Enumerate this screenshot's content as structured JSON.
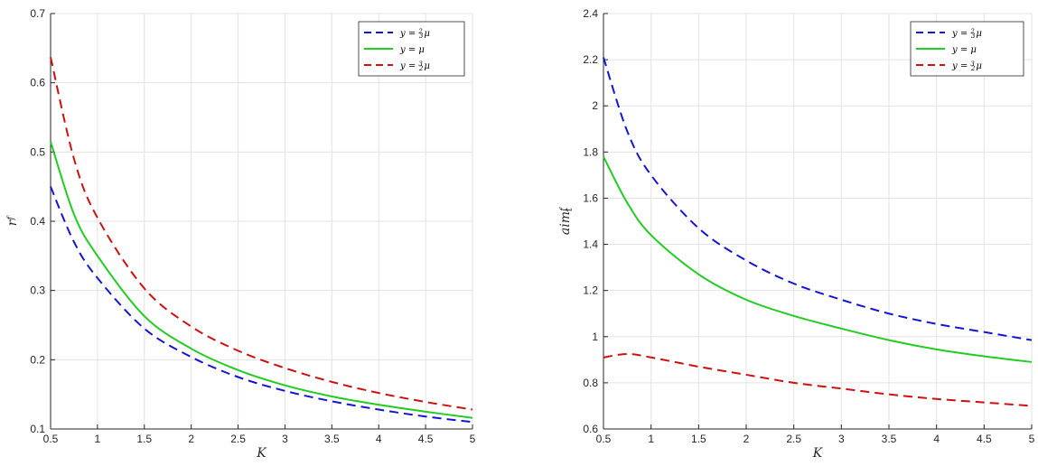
{
  "chart_data": [
    {
      "type": "line",
      "xlabel": "K",
      "ylabel": "r",
      "ylabel_sup": "f",
      "ylabel_sub": "",
      "xlim": [
        0.5,
        5
      ],
      "ylim": [
        0.1,
        0.7
      ],
      "xticks": [
        "0.5",
        "1",
        "1.5",
        "2",
        "2.5",
        "3",
        "3.5",
        "4",
        "4.5",
        "5"
      ],
      "yticks": [
        "0.1",
        "0.2",
        "0.3",
        "0.4",
        "0.5",
        "0.6",
        "0.7"
      ],
      "grid": true,
      "legend_position": "top-right",
      "x": [
        0.5,
        0.75,
        1.0,
        1.5,
        2.0,
        2.5,
        3.0,
        3.5,
        4.0,
        4.5,
        5.0
      ],
      "series": [
        {
          "name": "y = 2/3 μ",
          "legend": {
            "pre": "y = ",
            "num": "2",
            "den": "3",
            "post": "μ"
          },
          "color": "#1515d6",
          "dash": true,
          "values": [
            0.45,
            0.37,
            0.318,
            0.245,
            0.204,
            0.175,
            0.155,
            0.14,
            0.128,
            0.118,
            0.11
          ]
        },
        {
          "name": "y = μ",
          "legend": {
            "pre": "y = μ",
            "num": "",
            "den": "",
            "post": ""
          },
          "color": "#22cc22",
          "dash": false,
          "values": [
            0.515,
            0.41,
            0.35,
            0.263,
            0.216,
            0.185,
            0.163,
            0.147,
            0.135,
            0.125,
            0.116
          ]
        },
        {
          "name": "y = 3/2 μ",
          "legend": {
            "pre": "y = ",
            "num": "3",
            "den": "2",
            "post": "μ"
          },
          "color": "#cc1111",
          "dash": true,
          "values": [
            0.637,
            0.49,
            0.405,
            0.303,
            0.248,
            0.213,
            0.188,
            0.168,
            0.152,
            0.139,
            0.128
          ]
        }
      ]
    },
    {
      "type": "line",
      "xlabel": "K",
      "ylabel": "aim",
      "ylabel_sup": "f",
      "ylabel_sub": "t",
      "xlim": [
        0.5,
        5
      ],
      "ylim": [
        0.6,
        2.4
      ],
      "xticks": [
        "0.5",
        "1",
        "1.5",
        "2",
        "2.5",
        "3",
        "3.5",
        "4",
        "4.5",
        "5"
      ],
      "yticks": [
        "0.6",
        "0.8",
        "1",
        "1.2",
        "1.4",
        "1.6",
        "1.8",
        "2",
        "2.2",
        "2.4"
      ],
      "grid": true,
      "legend_position": "top-right",
      "x": [
        0.5,
        0.75,
        1.0,
        1.5,
        2.0,
        2.5,
        3.0,
        3.5,
        4.0,
        4.5,
        5.0
      ],
      "series": [
        {
          "name": "y = 2/3 μ",
          "legend": {
            "pre": "y = ",
            "num": "2",
            "den": "3",
            "post": "μ"
          },
          "color": "#1515d6",
          "dash": true,
          "values": [
            2.21,
            1.89,
            1.7,
            1.47,
            1.33,
            1.23,
            1.16,
            1.1,
            1.055,
            1.02,
            0.985
          ]
        },
        {
          "name": "y = μ",
          "legend": {
            "pre": "y = μ",
            "num": "",
            "den": "",
            "post": ""
          },
          "color": "#22cc22",
          "dash": false,
          "values": [
            1.78,
            1.58,
            1.44,
            1.27,
            1.16,
            1.09,
            1.035,
            0.985,
            0.945,
            0.915,
            0.89
          ]
        },
        {
          "name": "y = 3/2 μ",
          "legend": {
            "pre": "y = ",
            "num": "3",
            "den": "2",
            "post": "μ"
          },
          "color": "#cc1111",
          "dash": true,
          "values": [
            0.91,
            0.925,
            0.91,
            0.87,
            0.835,
            0.8,
            0.775,
            0.75,
            0.73,
            0.715,
            0.7
          ]
        }
      ]
    }
  ]
}
